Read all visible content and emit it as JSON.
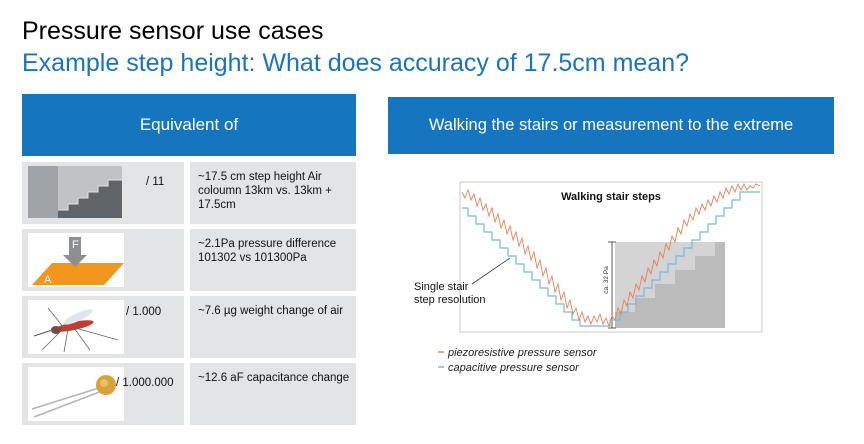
{
  "title": "Pressure sensor use cases",
  "subtitle": "Example step height: What does accuracy of 17.5cm mean?",
  "left_header": "Equivalent of",
  "right_header": "Walking the stairs or measurement to the extreme",
  "rows": [
    {
      "ratio": "/ 11",
      "icon": "stairs-photo",
      "text": "~17.5 cm step height Air coloumn 13km vs. 13km + 17.5cm"
    },
    {
      "ratio": "",
      "icon": "force-on-area-diagram",
      "text": "~2.1Pa pressure difference 101302 vs 101300Pa",
      "labels": [
        "F",
        "A"
      ]
    },
    {
      "ratio": "/ 1.000",
      "icon": "mosquito-photo",
      "text": "~7.6 µg weight change of air"
    },
    {
      "ratio": "/ 1.000.000",
      "icon": "capacitor-photo",
      "text": "~12.6 aF capacitance change"
    }
  ],
  "chart": {
    "title": "Walking stair steps",
    "annotation": "Single stair step resolution",
    "range_label": "ca. 32 Pa",
    "legend": [
      {
        "name": "piezoresistive pressure sensor",
        "color": "#e8825a"
      },
      {
        "name": "capacitive pressure sensor",
        "color": "#7ab8dc"
      }
    ]
  }
}
